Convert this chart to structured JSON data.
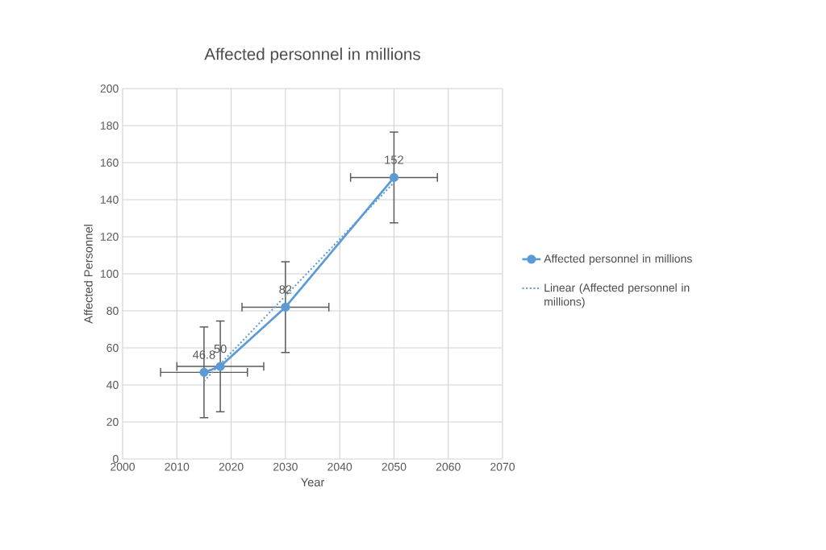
{
  "chart_data": {
    "type": "line",
    "title": "Affected personnel in millions",
    "xlabel": "Year",
    "ylabel": "Affected Personnel",
    "xlim": [
      2000,
      2070
    ],
    "xticks": [
      2000,
      2010,
      2020,
      2030,
      2040,
      2050,
      2060,
      2070
    ],
    "ylim": [
      0,
      200
    ],
    "yticks": [
      0,
      20,
      40,
      60,
      80,
      100,
      120,
      140,
      160,
      180,
      200
    ],
    "grid": true,
    "legend": "right",
    "series": [
      {
        "name": "Affected personnel in millions",
        "color": "#5b9bd5",
        "marker": "circle",
        "line_style": "solid",
        "x": [
          2015,
          2018,
          2030,
          2050
        ],
        "values": [
          46.8,
          50,
          82,
          152
        ],
        "value_labels": [
          "46.8",
          "50",
          "82",
          "152"
        ],
        "errors": [
          24.5,
          24.5,
          24.5,
          24.5
        ],
        "xerrors": [
          8,
          8,
          8,
          8
        ]
      },
      {
        "name": "Linear (Affected personnel in millions)",
        "color": "#5b9bd5",
        "marker": "none",
        "line_style": "dotted",
        "x": [
          2015,
          2050
        ],
        "values": [
          42.1,
          149.3
        ]
      }
    ]
  }
}
